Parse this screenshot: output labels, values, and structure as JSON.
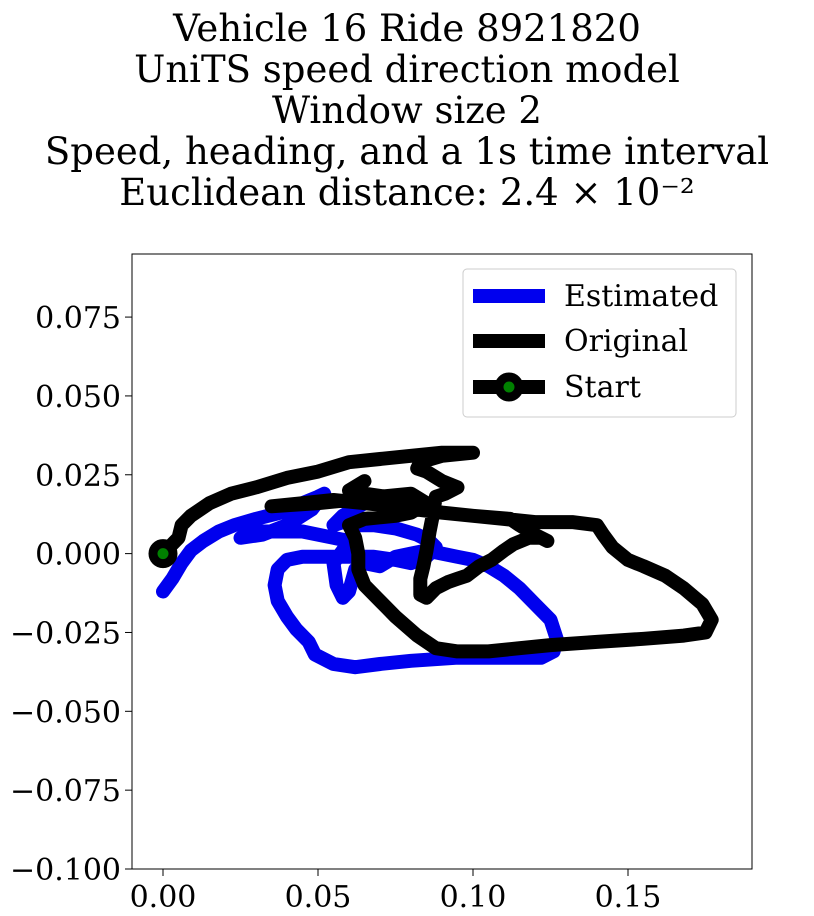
{
  "chart_data": {
    "type": "line",
    "title_lines": [
      "Vehicle 16 Ride 8921820",
      "UniTS speed direction model",
      "Window size 2",
      "Speed, heading, and a 1s time interval",
      "Euclidean distance: 2.4 × 10⁻²"
    ],
    "xlabel": "",
    "ylabel": "",
    "xlim": [
      -0.01,
      0.19
    ],
    "ylim": [
      -0.1,
      0.095
    ],
    "xticks": [
      0.0,
      0.05,
      0.1,
      0.15
    ],
    "xtick_labels": [
      "0.00",
      "0.05",
      "0.10",
      "0.15"
    ],
    "yticks": [
      0.075,
      0.05,
      0.025,
      0.0,
      -0.025,
      -0.05,
      -0.075,
      -0.1
    ],
    "ytick_labels": [
      "0.075",
      "0.050",
      "0.025",
      "0.000",
      "−0.025",
      "−0.050",
      "−0.075",
      "−0.100"
    ],
    "grid": false,
    "legend_position": "upper right",
    "series": [
      {
        "name": "Estimated",
        "color": "#0000ee",
        "points": [
          [
            0.0,
            -0.012
          ],
          [
            0.003,
            -0.008
          ],
          [
            0.006,
            -0.003
          ],
          [
            0.009,
            0.001
          ],
          [
            0.013,
            0.004
          ],
          [
            0.018,
            0.007
          ],
          [
            0.023,
            0.009
          ],
          [
            0.03,
            0.011
          ],
          [
            0.038,
            0.013
          ],
          [
            0.045,
            0.016
          ],
          [
            0.05,
            0.018
          ],
          [
            0.052,
            0.019
          ],
          [
            0.048,
            0.014
          ],
          [
            0.04,
            0.009
          ],
          [
            0.032,
            0.006
          ],
          [
            0.025,
            0.005
          ],
          [
            0.03,
            0.007
          ],
          [
            0.045,
            0.007
          ],
          [
            0.055,
            0.005
          ],
          [
            0.06,
            0.004
          ],
          [
            0.058,
            0.001
          ],
          [
            0.055,
            -0.003
          ],
          [
            0.056,
            -0.01
          ],
          [
            0.058,
            -0.014
          ],
          [
            0.06,
            -0.012
          ],
          [
            0.062,
            -0.005
          ],
          [
            0.065,
            -0.003
          ],
          [
            0.07,
            -0.004
          ],
          [
            0.075,
            -0.001
          ],
          [
            0.08,
            0.0
          ],
          [
            0.085,
            0.001
          ],
          [
            0.09,
            0.0
          ],
          [
            0.095,
            -0.001
          ],
          [
            0.1,
            -0.002
          ],
          [
            0.105,
            -0.004
          ],
          [
            0.11,
            -0.007
          ],
          [
            0.115,
            -0.011
          ],
          [
            0.12,
            -0.016
          ],
          [
            0.125,
            -0.021
          ],
          [
            0.127,
            -0.027
          ],
          [
            0.126,
            -0.031
          ],
          [
            0.122,
            -0.033
          ],
          [
            0.11,
            -0.033
          ],
          [
            0.095,
            -0.033
          ],
          [
            0.08,
            -0.034
          ],
          [
            0.07,
            -0.035
          ],
          [
            0.062,
            -0.036
          ],
          [
            0.055,
            -0.035
          ],
          [
            0.049,
            -0.032
          ],
          [
            0.047,
            -0.028
          ],
          [
            0.043,
            -0.024
          ],
          [
            0.04,
            -0.02
          ],
          [
            0.037,
            -0.015
          ],
          [
            0.036,
            -0.01
          ],
          [
            0.037,
            -0.005
          ],
          [
            0.04,
            -0.002
          ],
          [
            0.045,
            -0.001
          ],
          [
            0.052,
            -0.001
          ],
          [
            0.06,
            -0.001
          ],
          [
            0.068,
            -0.001
          ],
          [
            0.075,
            -0.002
          ],
          [
            0.08,
            -0.003
          ],
          [
            0.085,
            -0.001
          ],
          [
            0.088,
            0.002
          ],
          [
            0.086,
            0.004
          ],
          [
            0.082,
            0.006
          ],
          [
            0.075,
            0.008
          ],
          [
            0.068,
            0.009
          ],
          [
            0.062,
            0.009
          ],
          [
            0.058,
            0.01
          ],
          [
            0.055,
            0.009
          ],
          [
            0.058,
            0.012
          ],
          [
            0.065,
            0.016
          ],
          [
            0.072,
            0.018
          ]
        ]
      },
      {
        "name": "Original",
        "color": "#000000",
        "points": [
          [
            0.0,
            0.0
          ],
          [
            0.005,
            0.005
          ],
          [
            0.006,
            0.009
          ],
          [
            0.009,
            0.012
          ],
          [
            0.015,
            0.016
          ],
          [
            0.022,
            0.019
          ],
          [
            0.03,
            0.021
          ],
          [
            0.04,
            0.024
          ],
          [
            0.05,
            0.026
          ],
          [
            0.06,
            0.029
          ],
          [
            0.07,
            0.03
          ],
          [
            0.08,
            0.031
          ],
          [
            0.09,
            0.032
          ],
          [
            0.1,
            0.032
          ],
          [
            0.09,
            0.031
          ],
          [
            0.083,
            0.029
          ],
          [
            0.082,
            0.027
          ],
          [
            0.085,
            0.026
          ],
          [
            0.09,
            0.023
          ],
          [
            0.095,
            0.021
          ],
          [
            0.091,
            0.019
          ],
          [
            0.088,
            0.018
          ],
          [
            0.087,
            0.012
          ],
          [
            0.086,
            0.007
          ],
          [
            0.085,
            0.001
          ],
          [
            0.084,
            -0.004
          ],
          [
            0.083,
            -0.008
          ],
          [
            0.083,
            -0.013
          ],
          [
            0.085,
            -0.014
          ],
          [
            0.088,
            -0.011
          ],
          [
            0.092,
            -0.009
          ],
          [
            0.095,
            -0.008
          ],
          [
            0.098,
            -0.007
          ],
          [
            0.102,
            -0.004
          ],
          [
            0.106,
            -0.002
          ],
          [
            0.11,
            0.001
          ],
          [
            0.113,
            0.003
          ],
          [
            0.118,
            0.005
          ],
          [
            0.122,
            0.005
          ],
          [
            0.124,
            0.004
          ],
          [
            0.12,
            0.006
          ],
          [
            0.115,
            0.009
          ],
          [
            0.112,
            0.011
          ],
          [
            0.1,
            0.012
          ],
          [
            0.09,
            0.013
          ],
          [
            0.082,
            0.014
          ],
          [
            0.075,
            0.015
          ],
          [
            0.065,
            0.016
          ],
          [
            0.055,
            0.017
          ],
          [
            0.045,
            0.016
          ],
          [
            0.035,
            0.015
          ],
          [
            0.05,
            0.016
          ],
          [
            0.06,
            0.017
          ],
          [
            0.07,
            0.018
          ],
          [
            0.08,
            0.019
          ],
          [
            0.085,
            0.016
          ],
          [
            0.08,
            0.013
          ],
          [
            0.075,
            0.012
          ],
          [
            0.065,
            0.011
          ],
          [
            0.06,
            0.009
          ],
          [
            0.062,
            0.005
          ],
          [
            0.063,
            0.0
          ],
          [
            0.063,
            -0.005
          ],
          [
            0.065,
            -0.01
          ],
          [
            0.07,
            -0.015
          ],
          [
            0.075,
            -0.02
          ],
          [
            0.082,
            -0.026
          ],
          [
            0.088,
            -0.03
          ],
          [
            0.095,
            -0.031
          ],
          [
            0.105,
            -0.031
          ],
          [
            0.115,
            -0.03
          ],
          [
            0.125,
            -0.029
          ],
          [
            0.14,
            -0.028
          ],
          [
            0.155,
            -0.027
          ],
          [
            0.168,
            -0.026
          ],
          [
            0.175,
            -0.025
          ],
          [
            0.177,
            -0.021
          ],
          [
            0.174,
            -0.016
          ],
          [
            0.168,
            -0.011
          ],
          [
            0.162,
            -0.007
          ],
          [
            0.155,
            -0.004
          ],
          [
            0.15,
            -0.002
          ],
          [
            0.145,
            0.002
          ],
          [
            0.142,
            0.006
          ],
          [
            0.14,
            0.009
          ],
          [
            0.132,
            0.01
          ],
          [
            0.12,
            0.01
          ],
          [
            0.11,
            0.011
          ],
          [
            0.1,
            0.012
          ],
          [
            0.09,
            0.013
          ],
          [
            0.08,
            0.015
          ],
          [
            0.072,
            0.018
          ],
          [
            0.065,
            0.019
          ],
          [
            0.06,
            0.02
          ],
          [
            0.065,
            0.023
          ]
        ]
      }
    ],
    "markers": [
      {
        "name": "Start",
        "x": 0.0,
        "y": 0.0,
        "edge_color": "#000000",
        "face_color": "#008000"
      }
    ],
    "legend": [
      "Estimated",
      "Original",
      "Start"
    ]
  }
}
